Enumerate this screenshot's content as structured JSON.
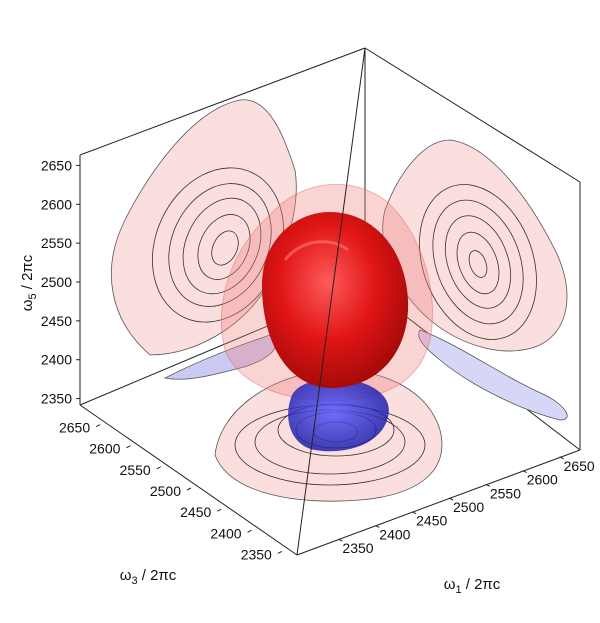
{
  "chart_data": {
    "type": "3d-isosurface",
    "title": "",
    "axes": {
      "x": {
        "label_symbol": "ω",
        "label_sub": "1",
        "label_rest": " / 2πc",
        "ticks": [
          "2350",
          "2400",
          "2450",
          "2500",
          "2550",
          "2600",
          "2650"
        ],
        "range": [
          2325,
          2675
        ]
      },
      "y": {
        "label_symbol": "ω",
        "label_sub": "3",
        "label_rest": " / 2πc",
        "ticks": [
          "2350",
          "2400",
          "2450",
          "2500",
          "2550",
          "2600",
          "2650"
        ],
        "range": [
          2325,
          2675
        ]
      },
      "z": {
        "label_symbol": "ω",
        "label_sub": "5",
        "label_rest": " / 2πc",
        "ticks": [
          "2350",
          "2400",
          "2450",
          "2500",
          "2550",
          "2600",
          "2650"
        ],
        "range": [
          2325,
          2675
        ]
      }
    },
    "isosurfaces": [
      {
        "sign": "positive",
        "level": "high",
        "center": [
          2500,
          2500,
          2510
        ],
        "color": "#e01515"
      },
      {
        "sign": "positive",
        "level": "low",
        "center": [
          2500,
          2500,
          2500
        ],
        "color": "#f08080"
      },
      {
        "sign": "negative",
        "level": "high",
        "center": [
          2480,
          2480,
          2385
        ],
        "color": "#2222cc"
      }
    ],
    "projections": {
      "left_wall": {
        "peak": [
          2530,
          2520
        ],
        "color": "#f4a0a0",
        "negative_color": "#b8b8f0"
      },
      "right_wall": {
        "peak": [
          2530,
          2520
        ],
        "color": "#f4a0a0",
        "negative_color": "#b8b8f0"
      },
      "floor": {
        "peak_positive": [
          2450,
          2450
        ],
        "peak_negative": [
          2480,
          2480
        ],
        "color": "#f4a0a0",
        "negative_color": "#9090e0"
      }
    },
    "grid": false,
    "legend": "none",
    "colors": {
      "positive": "#e01515",
      "negative": "#2222cc",
      "box": "#222222"
    }
  }
}
